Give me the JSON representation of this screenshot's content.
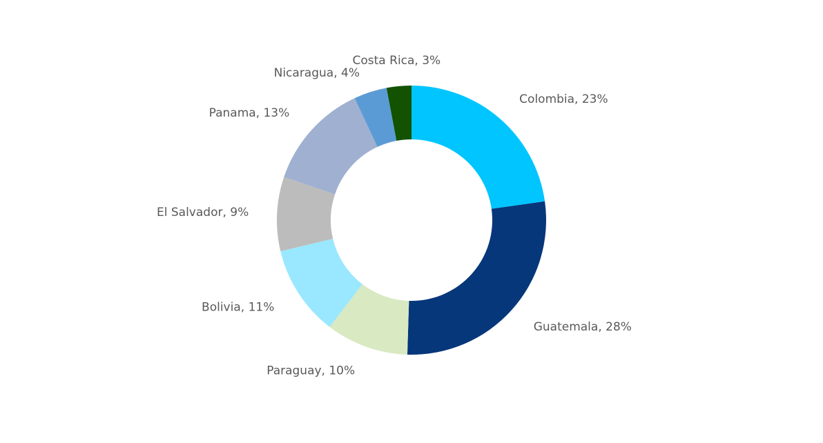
{
  "chart_data": {
    "type": "donut",
    "categories": [
      "Colombia",
      "Guatemala",
      "Paraguay",
      "Bolivia",
      "El Salvador",
      "Panama",
      "Nicaragua",
      "Costa Rica"
    ],
    "values": [
      23,
      28,
      10,
      11,
      9,
      13,
      4,
      3
    ],
    "value_labels": [
      "Colombia, 23%",
      "Guatemala, 28%",
      "Paraguay, 10%",
      "Bolivia, 11%",
      "El Salvador, 9%",
      "Panama, 13%",
      "Nicaragua, 4%",
      "Costa Rica, 3%"
    ],
    "colors": [
      "#00c5ff",
      "#06377a",
      "#d9e9c2",
      "#99e8ff",
      "#bcbcbc",
      "#9fb0d0",
      "#5a9bd5",
      "#125200"
    ]
  }
}
